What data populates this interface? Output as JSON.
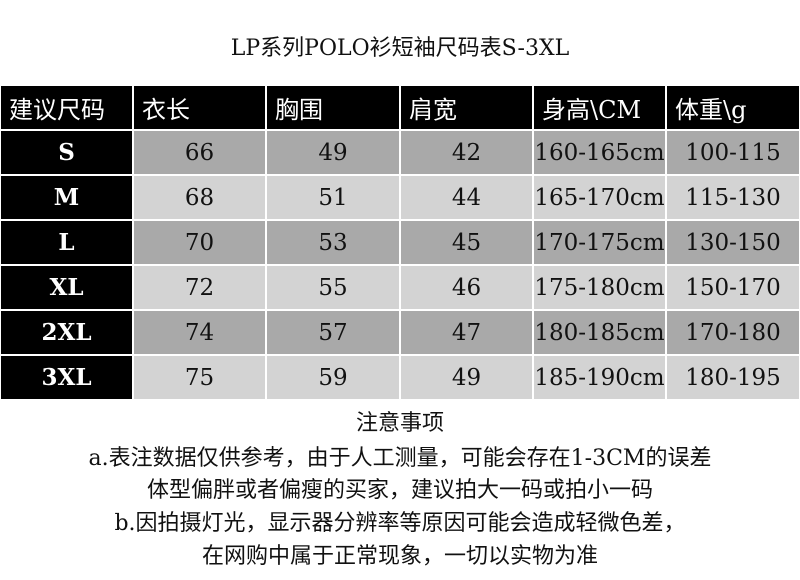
{
  "title": "LP系列POLO衫短袖尺码表S-3XL",
  "table": {
    "header": [
      "建议尺码",
      "衣长",
      "胸围",
      "肩宽",
      "身高\\CM",
      "体重\\g"
    ],
    "rows": [
      [
        "S",
        66,
        49,
        42,
        "160-165cm",
        "100-115"
      ],
      [
        "M",
        68,
        51,
        44,
        "165-170cm",
        "115-130"
      ],
      [
        "L",
        70,
        53,
        45,
        "170-175cm",
        "130-150"
      ],
      [
        "XL",
        72,
        55,
        46,
        "175-180cm",
        "150-170"
      ],
      [
        "2XL",
        74,
        57,
        47,
        "180-185cm",
        "170-180"
      ],
      [
        "3XL",
        75,
        59,
        49,
        "185-190cm",
        "180-195"
      ]
    ]
  },
  "notes": {
    "title": "注意事项",
    "lines": [
      "a.表注数据仅供参考，由于人工测量，可能会存在1-3CM的误差",
      "体型偏胖或者偏瘦的买家，建议拍大一码或拍小一码",
      "b.因拍摄灯光，显示器分辨率等原因可能会造成轻微色差，",
      "在网购中属于正常现象，一切以实物为准"
    ]
  }
}
